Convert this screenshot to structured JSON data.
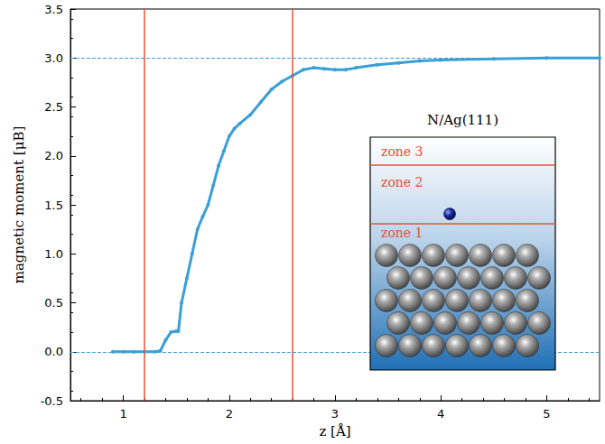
{
  "chart_data": {
    "type": "line",
    "x_label": "z [Å]",
    "y_label": "magnetic moment [μB]",
    "x": [
      0.9,
      1.0,
      1.1,
      1.2,
      1.3,
      1.35,
      1.4,
      1.45,
      1.5,
      1.52,
      1.55,
      1.6,
      1.65,
      1.7,
      1.75,
      1.8,
      1.85,
      1.9,
      1.95,
      2.0,
      2.05,
      2.1,
      2.2,
      2.3,
      2.4,
      2.5,
      2.6,
      2.7,
      2.8,
      2.9,
      3.0,
      3.1,
      3.2,
      3.4,
      3.6,
      3.8,
      4.0,
      4.5,
      5.0,
      5.5
    ],
    "values": [
      0,
      0,
      0,
      0,
      0,
      0.01,
      0.12,
      0.2,
      0.21,
      0.21,
      0.5,
      0.75,
      1.0,
      1.25,
      1.38,
      1.5,
      1.7,
      1.9,
      2.05,
      2.2,
      2.28,
      2.33,
      2.42,
      2.55,
      2.68,
      2.76,
      2.82,
      2.88,
      2.9,
      2.89,
      2.88,
      2.88,
      2.9,
      2.93,
      2.95,
      2.97,
      2.98,
      2.99,
      3.0,
      3.0
    ],
    "color": "#3a9fd6",
    "marker": "circle",
    "xlim": [
      0.5,
      5.5
    ],
    "xticks": [
      1,
      2,
      3,
      4,
      5
    ],
    "ylim": [
      -0.5,
      3.5
    ],
    "yticks": [
      -0.5,
      {
        "value": 0,
        "label": "0.0"
      },
      0.5,
      {
        "value": 1,
        "label": "1.0"
      },
      1.5,
      {
        "value": 2,
        "label": "2.0"
      },
      2.5,
      {
        "value": 3,
        "label": "3.0"
      },
      3.5
    ],
    "grid": false,
    "reference_lines": [
      {
        "axis": "x",
        "value": 1.2,
        "color": "#e8503a",
        "line_style": "solid"
      },
      {
        "axis": "x",
        "value": 2.6,
        "color": "#e8503a",
        "line_style": "solid"
      },
      {
        "axis": "y",
        "value": 0,
        "color": "#3a9fd6",
        "line_style": "dashed"
      },
      {
        "axis": "y",
        "value": 3,
        "color": "#3a9fd6",
        "line_style": "dashed"
      }
    ],
    "inset": {
      "title": "N/Ag(111)",
      "zones": [
        "zone 1",
        "zone 2",
        "zone 3"
      ],
      "color": "#e8503a"
    }
  }
}
